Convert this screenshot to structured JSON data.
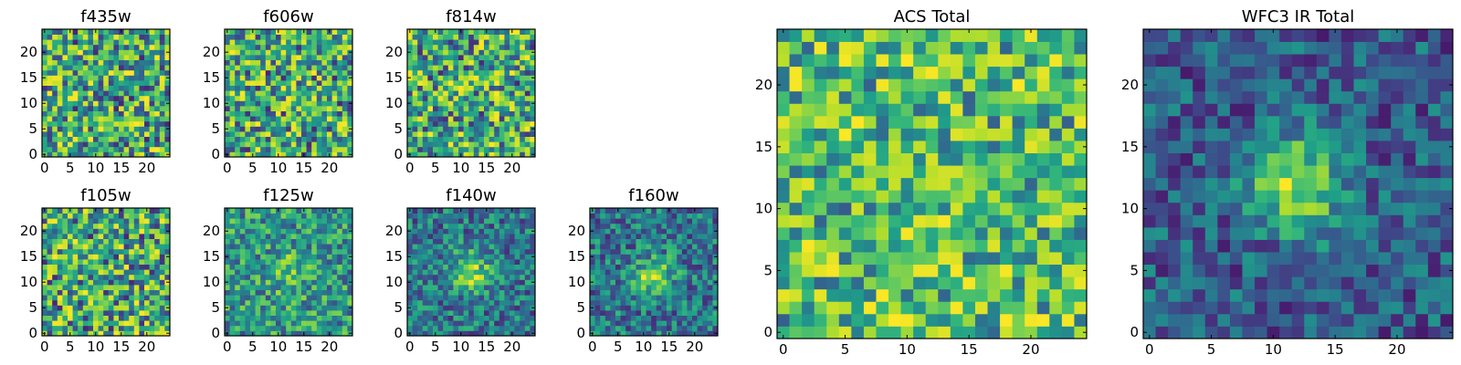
{
  "chart_data": [
    {
      "type": "heatmap",
      "title": "f435w",
      "xticks": [
        0,
        5,
        10,
        15,
        20
      ],
      "yticks": [
        0,
        5,
        10,
        15,
        20
      ],
      "xlim": [
        0,
        24
      ],
      "ylim": [
        0,
        24
      ],
      "grid_size": 25,
      "colormap": "viridis",
      "pattern": "noise",
      "grid": false
    },
    {
      "type": "heatmap",
      "title": "f606w",
      "xticks": [
        0,
        5,
        10,
        15,
        20
      ],
      "yticks": [
        0,
        5,
        10,
        15,
        20
      ],
      "xlim": [
        0,
        24
      ],
      "ylim": [
        0,
        24
      ],
      "grid_size": 25,
      "colormap": "viridis",
      "pattern": "noise",
      "grid": false
    },
    {
      "type": "heatmap",
      "title": "f814w",
      "xticks": [
        0,
        5,
        10,
        15,
        20
      ],
      "yticks": [
        0,
        5,
        10,
        15,
        20
      ],
      "xlim": [
        0,
        24
      ],
      "ylim": [
        0,
        24
      ],
      "grid_size": 25,
      "colormap": "viridis",
      "pattern": "noise",
      "grid": false
    },
    {
      "type": "heatmap",
      "title": "f105w",
      "xticks": [
        0,
        5,
        10,
        15,
        20
      ],
      "yticks": [
        0,
        5,
        10,
        15,
        20
      ],
      "xlim": [
        0,
        24
      ],
      "ylim": [
        0,
        24
      ],
      "grid_size": 25,
      "colormap": "viridis",
      "pattern": "noise",
      "grid": false
    },
    {
      "type": "heatmap",
      "title": "f125w",
      "xticks": [
        0,
        5,
        10,
        15,
        20
      ],
      "yticks": [
        0,
        5,
        10,
        15,
        20
      ],
      "xlim": [
        0,
        24
      ],
      "ylim": [
        0,
        24
      ],
      "grid_size": 25,
      "colormap": "viridis",
      "pattern": "faint-source",
      "source_center": [
        12,
        12
      ],
      "grid": false
    },
    {
      "type": "heatmap",
      "title": "f140w",
      "xticks": [
        0,
        5,
        10,
        15,
        20
      ],
      "yticks": [
        0,
        5,
        10,
        15,
        20
      ],
      "xlim": [
        0,
        24
      ],
      "ylim": [
        0,
        24
      ],
      "grid_size": 25,
      "colormap": "viridis",
      "pattern": "source",
      "source_center": [
        12,
        12
      ],
      "grid": false
    },
    {
      "type": "heatmap",
      "title": "f160w",
      "xticks": [
        0,
        5,
        10,
        15,
        20
      ],
      "yticks": [
        0,
        5,
        10,
        15,
        20
      ],
      "xlim": [
        0,
        24
      ],
      "ylim": [
        0,
        24
      ],
      "grid_size": 25,
      "colormap": "viridis",
      "pattern": "source",
      "source_center": [
        12,
        11
      ],
      "grid": false
    },
    {
      "type": "heatmap",
      "title": "ACS Total",
      "xticks": [
        0,
        5,
        10,
        15,
        20
      ],
      "yticks": [
        0,
        5,
        10,
        15,
        20
      ],
      "xlim": [
        0,
        24
      ],
      "ylim": [
        0,
        24
      ],
      "grid_size": 25,
      "colormap": "viridis",
      "pattern": "noise-bright",
      "grid": false
    },
    {
      "type": "heatmap",
      "title": "WFC3 IR Total",
      "xticks": [
        0,
        5,
        10,
        15,
        20
      ],
      "yticks": [
        0,
        5,
        10,
        15,
        20
      ],
      "xlim": [
        0,
        24
      ],
      "ylim": [
        0,
        24
      ],
      "grid_size": 25,
      "colormap": "viridis",
      "pattern": "source-strong",
      "source_center": [
        12,
        12
      ],
      "grid": false
    }
  ]
}
